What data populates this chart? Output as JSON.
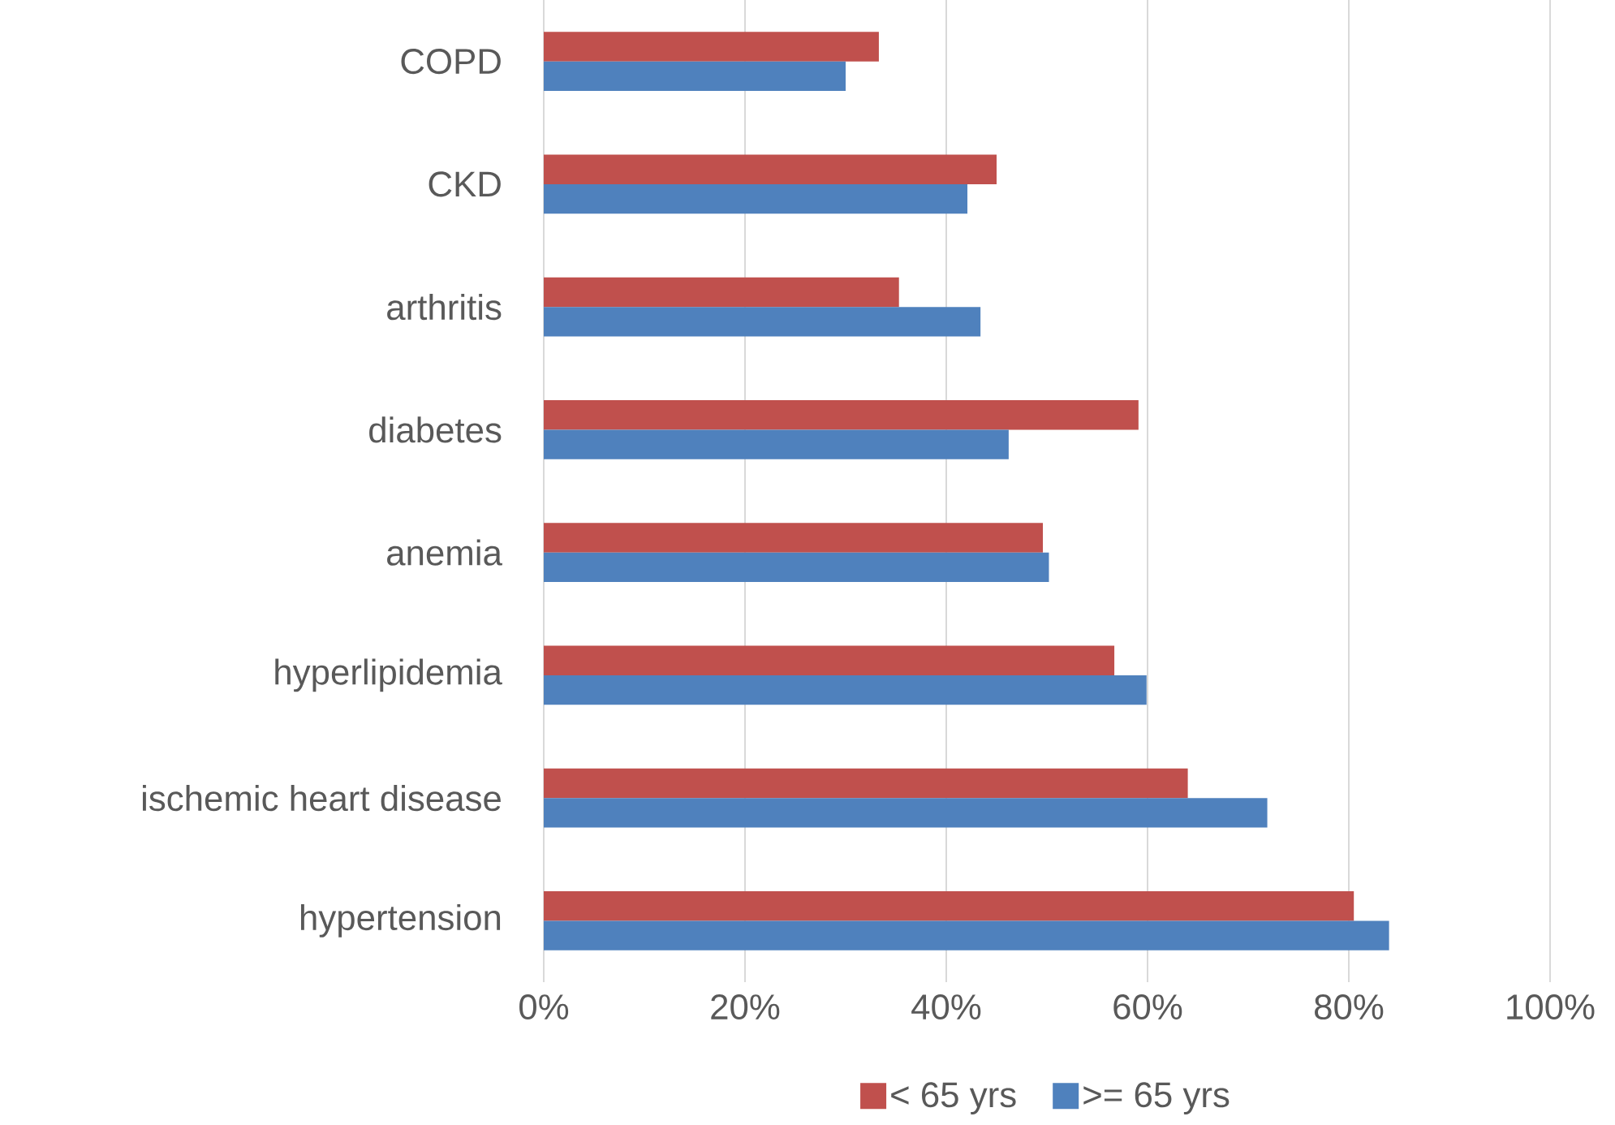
{
  "chart_data": {
    "type": "bar",
    "orientation": "horizontal",
    "categories": [
      "COPD",
      "CKD",
      "arthritis",
      "diabetes",
      "anemia",
      "hyperlipidemia",
      "ischemic heart disease",
      "hypertension"
    ],
    "series": [
      {
        "name": "< 65 yrs",
        "color": "#c0504d",
        "values": [
          33.3,
          45.0,
          35.3,
          59.1,
          49.6,
          56.7,
          64.0,
          80.5
        ]
      },
      {
        "name": ">= 65 yrs",
        "color": "#4f81bd",
        "values": [
          30.0,
          42.1,
          43.4,
          46.2,
          50.2,
          59.9,
          71.9,
          84.0
        ]
      }
    ],
    "xlim": [
      0,
      100
    ],
    "xticks": [
      {
        "value": 0,
        "label": "0%"
      },
      {
        "value": 20,
        "label": "20%"
      },
      {
        "value": 40,
        "label": "40%"
      },
      {
        "value": 60,
        "label": "60%"
      },
      {
        "value": 80,
        "label": "80%"
      },
      {
        "value": 100,
        "label": "100%"
      }
    ],
    "grid": "x",
    "legend": "bottom"
  }
}
